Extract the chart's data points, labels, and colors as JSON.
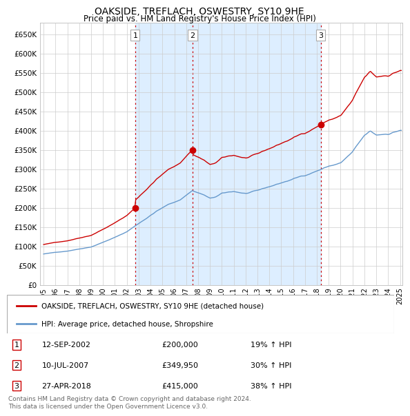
{
  "title": "OAKSIDE, TREFLACH, OSWESTRY, SY10 9HE",
  "subtitle": "Price paid vs. HM Land Registry's House Price Index (HPI)",
  "ylim": [
    0,
    680000
  ],
  "yticks": [
    0,
    50000,
    100000,
    150000,
    200000,
    250000,
    300000,
    350000,
    400000,
    450000,
    500000,
    550000,
    600000,
    650000
  ],
  "sale_year_nums": [
    2002.71,
    2007.53,
    2018.32
  ],
  "sale_prices": [
    200000,
    349950,
    415000
  ],
  "sale_labels": [
    "1",
    "2",
    "3"
  ],
  "vline_color": "#cc0000",
  "property_line_color": "#cc0000",
  "hpi_line_color": "#6699cc",
  "shade_color": "#ddeeff",
  "legend_label_property": "OAKSIDE, TREFLACH, OSWESTRY, SY10 9HE (detached house)",
  "legend_label_hpi": "HPI: Average price, detached house, Shropshire",
  "footer": "Contains HM Land Registry data © Crown copyright and database right 2024.\nThis data is licensed under the Open Government Licence v3.0.",
  "background_color": "#ffffff",
  "grid_color": "#cccccc",
  "table_entries": [
    {
      "num": "1",
      "date": "12-SEP-2002",
      "price": "£200,000",
      "pct": "19% ↑ HPI"
    },
    {
      "num": "2",
      "date": "10-JUL-2007",
      "price": "£349,950",
      "pct": "30% ↑ HPI"
    },
    {
      "num": "3",
      "date": "27-APR-2018",
      "price": "£415,000",
      "pct": "38% ↑ HPI"
    }
  ],
  "xmin": 1995.0,
  "xmax": 2025.2
}
